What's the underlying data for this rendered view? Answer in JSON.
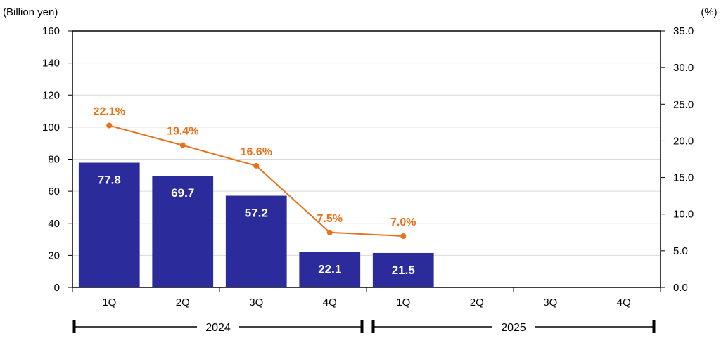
{
  "chart_data": {
    "type": "bar",
    "y_left_label": "(Billion yen)",
    "y_right_label": "(%)",
    "ylim_left": [
      0,
      160
    ],
    "ylim_right": [
      0,
      35
    ],
    "left_ticks": [
      "0",
      "20",
      "40",
      "60",
      "80",
      "100",
      "120",
      "140",
      "160"
    ],
    "right_ticks": [
      "0.0",
      "5.0",
      "10.0",
      "15.0",
      "20.0",
      "25.0",
      "30.0",
      "35.0"
    ],
    "left_tick_values": [
      0,
      20,
      40,
      60,
      80,
      100,
      120,
      140,
      160
    ],
    "right_tick_values": [
      0,
      5,
      10,
      15,
      20,
      25,
      30,
      35
    ],
    "categories": [
      "1Q",
      "2Q",
      "3Q",
      "4Q",
      "1Q",
      "2Q",
      "3Q",
      "4Q"
    ],
    "groups": [
      {
        "label": "2024",
        "from": 0,
        "to": 3
      },
      {
        "label": "2025",
        "from": 4,
        "to": 7
      }
    ],
    "bars": {
      "values": [
        77.8,
        69.7,
        57.2,
        22.1,
        21.5,
        null,
        null,
        null
      ],
      "labels": [
        "77.8",
        "69.7",
        "57.2",
        "22.1",
        "21.5",
        "",
        "",
        ""
      ],
      "color": "#2b2b9b"
    },
    "line": {
      "values": [
        22.1,
        19.4,
        16.6,
        7.5,
        7.0,
        null,
        null,
        null
      ],
      "labels": [
        "22.1%",
        "19.4%",
        "16.6%",
        "7.5%",
        "7.0%",
        "",
        "",
        ""
      ],
      "color": "#e8711c"
    },
    "grid": true
  }
}
